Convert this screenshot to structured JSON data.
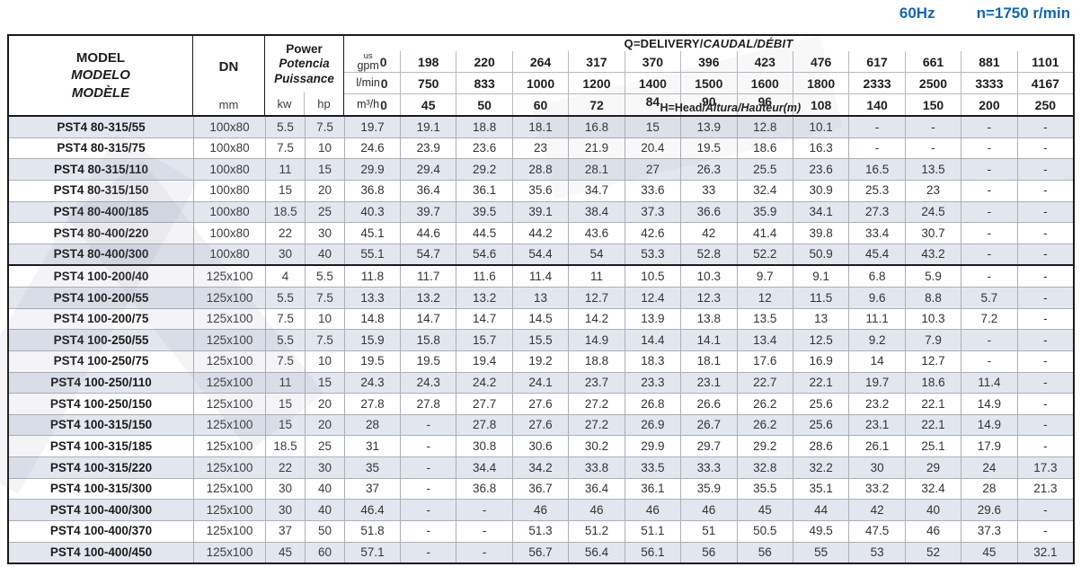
{
  "header_note": {
    "frequency": "60Hz",
    "speed": "n=1750 r/min"
  },
  "colors": {
    "accent_blue": "#1266b1",
    "row_tint": "#e2e6ef",
    "grid_line": "#abafba",
    "frame": "#1a1a1a"
  },
  "table": {
    "columns": {
      "model": {
        "en": "MODEL",
        "es": "MODELO",
        "fr": "MODÈLE"
      },
      "dn": {
        "label": "DN",
        "unit": "mm"
      },
      "power": {
        "en": "Power",
        "es": "Potencia",
        "fr": "Puissance",
        "kw": "kw",
        "hp": "hp"
      },
      "delivery": {
        "title_plain": "Q=DELIVERY/",
        "title_italic": "CAUDAL/DÉBIT"
      },
      "head": {
        "plain": "H=Head/",
        "italic": "Altura/Hauteur(m)"
      }
    },
    "flow_rows": [
      {
        "unit_small": "us",
        "unit": "gpm",
        "zero": "0",
        "values": [
          "198",
          "220",
          "264",
          "317",
          "370",
          "396",
          "423",
          "476",
          "617",
          "661",
          "881",
          "1101"
        ]
      },
      {
        "unit": "l/min",
        "zero": "0",
        "values": [
          "750",
          "833",
          "1000",
          "1200",
          "1400",
          "1500",
          "1600",
          "1800",
          "2333",
          "2500",
          "3333",
          "4167"
        ]
      },
      {
        "unit": "m³/h",
        "zero": "0",
        "values": [
          "45",
          "50",
          "60",
          "72",
          "84",
          "90",
          "96",
          "108",
          "140",
          "150",
          "200",
          "250"
        ]
      }
    ],
    "rows": [
      {
        "model": "PST4 80-315/55",
        "dn": "100x80",
        "kw": "5.5",
        "hp": "7.5",
        "group_start": false,
        "heads": [
          "19.7",
          "19.1",
          "18.8",
          "18.1",
          "16.8",
          "15",
          "13.9",
          "12.8",
          "10.1",
          "-",
          "-",
          "-",
          "-"
        ]
      },
      {
        "model": "PST4 80-315/75",
        "dn": "100x80",
        "kw": "7.5",
        "hp": "10",
        "group_start": false,
        "heads": [
          "24.6",
          "23.9",
          "23.6",
          "23",
          "21.9",
          "20.4",
          "19.5",
          "18.6",
          "16.3",
          "-",
          "-",
          "-",
          "-"
        ]
      },
      {
        "model": "PST4 80-315/110",
        "dn": "100x80",
        "kw": "11",
        "hp": "15",
        "group_start": false,
        "heads": [
          "29.9",
          "29.4",
          "29.2",
          "28.8",
          "28.1",
          "27",
          "26.3",
          "25.5",
          "23.6",
          "16.5",
          "13.5",
          "-",
          "-"
        ]
      },
      {
        "model": "PST4 80-315/150",
        "dn": "100x80",
        "kw": "15",
        "hp": "20",
        "group_start": false,
        "heads": [
          "36.8",
          "36.4",
          "36.1",
          "35.6",
          "34.7",
          "33.6",
          "33",
          "32.4",
          "30.9",
          "25.3",
          "23",
          "-",
          "-"
        ]
      },
      {
        "model": "PST4 80-400/185",
        "dn": "100x80",
        "kw": "18.5",
        "hp": "25",
        "group_start": false,
        "heads": [
          "40.3",
          "39.7",
          "39.5",
          "39.1",
          "38.4",
          "37.3",
          "36.6",
          "35.9",
          "34.1",
          "27.3",
          "24.5",
          "-",
          "-"
        ]
      },
      {
        "model": "PST4 80-400/220",
        "dn": "100x80",
        "kw": "22",
        "hp": "30",
        "group_start": false,
        "heads": [
          "45.1",
          "44.6",
          "44.5",
          "44.2",
          "43.6",
          "42.6",
          "42",
          "41.4",
          "39.8",
          "33.4",
          "30.7",
          "-",
          "-"
        ]
      },
      {
        "model": "PST4 80-400/300",
        "dn": "100x80",
        "kw": "30",
        "hp": "40",
        "group_start": false,
        "heads": [
          "55.1",
          "54.7",
          "54.6",
          "54.4",
          "54",
          "53.3",
          "52.8",
          "52.2",
          "50.9",
          "45.4",
          "43.2",
          "-",
          "-"
        ]
      },
      {
        "model": "PST4 100-200/40",
        "dn": "125x100",
        "kw": "4",
        "hp": "5.5",
        "group_start": true,
        "heads": [
          "11.8",
          "11.7",
          "11.6",
          "11.4",
          "11",
          "10.5",
          "10.3",
          "9.7",
          "9.1",
          "6.8",
          "5.9",
          "-",
          "-"
        ]
      },
      {
        "model": "PST4 100-200/55",
        "dn": "125x100",
        "kw": "5.5",
        "hp": "7.5",
        "group_start": false,
        "heads": [
          "13.3",
          "13.2",
          "13.2",
          "13",
          "12.7",
          "12.4",
          "12.3",
          "12",
          "11.5",
          "9.6",
          "8.8",
          "5.7",
          "-"
        ]
      },
      {
        "model": "PST4 100-200/75",
        "dn": "125x100",
        "kw": "7.5",
        "hp": "10",
        "group_start": false,
        "heads": [
          "14.8",
          "14.7",
          "14.7",
          "14.5",
          "14.2",
          "13.9",
          "13.8",
          "13.5",
          "13",
          "11.1",
          "10.3",
          "7.2",
          "-"
        ]
      },
      {
        "model": "PST4 100-250/55",
        "dn": "125x100",
        "kw": "5.5",
        "hp": "7.5",
        "group_start": false,
        "heads": [
          "15.9",
          "15.8",
          "15.7",
          "15.5",
          "14.9",
          "14.4",
          "14.1",
          "13.4",
          "12.5",
          "9.2",
          "7.9",
          "-",
          "-"
        ]
      },
      {
        "model": "PST4 100-250/75",
        "dn": "125x100",
        "kw": "7.5",
        "hp": "10",
        "group_start": false,
        "heads": [
          "19.5",
          "19.5",
          "19.4",
          "19.2",
          "18.8",
          "18.3",
          "18.1",
          "17.6",
          "16.9",
          "14",
          "12.7",
          "-",
          "-"
        ]
      },
      {
        "model": "PST4 100-250/110",
        "dn": "125x100",
        "kw": "11",
        "hp": "15",
        "group_start": false,
        "heads": [
          "24.3",
          "24.3",
          "24.2",
          "24.1",
          "23.7",
          "23.3",
          "23.1",
          "22.7",
          "22.1",
          "19.7",
          "18.6",
          "11.4",
          "-"
        ]
      },
      {
        "model": "PST4 100-250/150",
        "dn": "125x100",
        "kw": "15",
        "hp": "20",
        "group_start": false,
        "heads": [
          "27.8",
          "27.8",
          "27.7",
          "27.6",
          "27.2",
          "26.8",
          "26.6",
          "26.2",
          "25.6",
          "23.2",
          "22.1",
          "14.9",
          "-"
        ]
      },
      {
        "model": "PST4 100-315/150",
        "dn": "125x100",
        "kw": "15",
        "hp": "20",
        "group_start": false,
        "heads": [
          "28",
          "-",
          "27.8",
          "27.6",
          "27.2",
          "26.9",
          "26.7",
          "26.2",
          "25.6",
          "23.1",
          "22.1",
          "14.9",
          "-"
        ]
      },
      {
        "model": "PST4 100-315/185",
        "dn": "125x100",
        "kw": "18.5",
        "hp": "25",
        "group_start": false,
        "heads": [
          "31",
          "-",
          "30.8",
          "30.6",
          "30.2",
          "29.9",
          "29.7",
          "29.2",
          "28.6",
          "26.1",
          "25.1",
          "17.9",
          "-"
        ]
      },
      {
        "model": "PST4 100-315/220",
        "dn": "125x100",
        "kw": "22",
        "hp": "30",
        "group_start": false,
        "heads": [
          "35",
          "-",
          "34.4",
          "34.2",
          "33.8",
          "33.5",
          "33.3",
          "32.8",
          "32.2",
          "30",
          "29",
          "24",
          "17.3"
        ]
      },
      {
        "model": "PST4 100-315/300",
        "dn": "125x100",
        "kw": "30",
        "hp": "40",
        "group_start": false,
        "heads": [
          "37",
          "-",
          "36.8",
          "36.7",
          "36.4",
          "36.1",
          "35.9",
          "35.5",
          "35.1",
          "33.2",
          "32.4",
          "28",
          "21.3"
        ]
      },
      {
        "model": "PST4 100-400/300",
        "dn": "125x100",
        "kw": "30",
        "hp": "40",
        "group_start": false,
        "heads": [
          "46.4",
          "-",
          "-",
          "46",
          "46",
          "46",
          "46",
          "45",
          "44",
          "42",
          "40",
          "29.6",
          "-"
        ]
      },
      {
        "model": "PST4 100-400/370",
        "dn": "125x100",
        "kw": "37",
        "hp": "50",
        "group_start": false,
        "heads": [
          "51.8",
          "-",
          "-",
          "51.3",
          "51.2",
          "51.1",
          "51",
          "50.5",
          "49.5",
          "47.5",
          "46",
          "37.3",
          "-"
        ]
      },
      {
        "model": "PST4 100-400/450",
        "dn": "125x100",
        "kw": "45",
        "hp": "60",
        "group_start": false,
        "heads": [
          "57.1",
          "-",
          "-",
          "56.7",
          "56.4",
          "56.1",
          "56",
          "56",
          "55",
          "53",
          "52",
          "45",
          "32.1"
        ]
      }
    ]
  }
}
